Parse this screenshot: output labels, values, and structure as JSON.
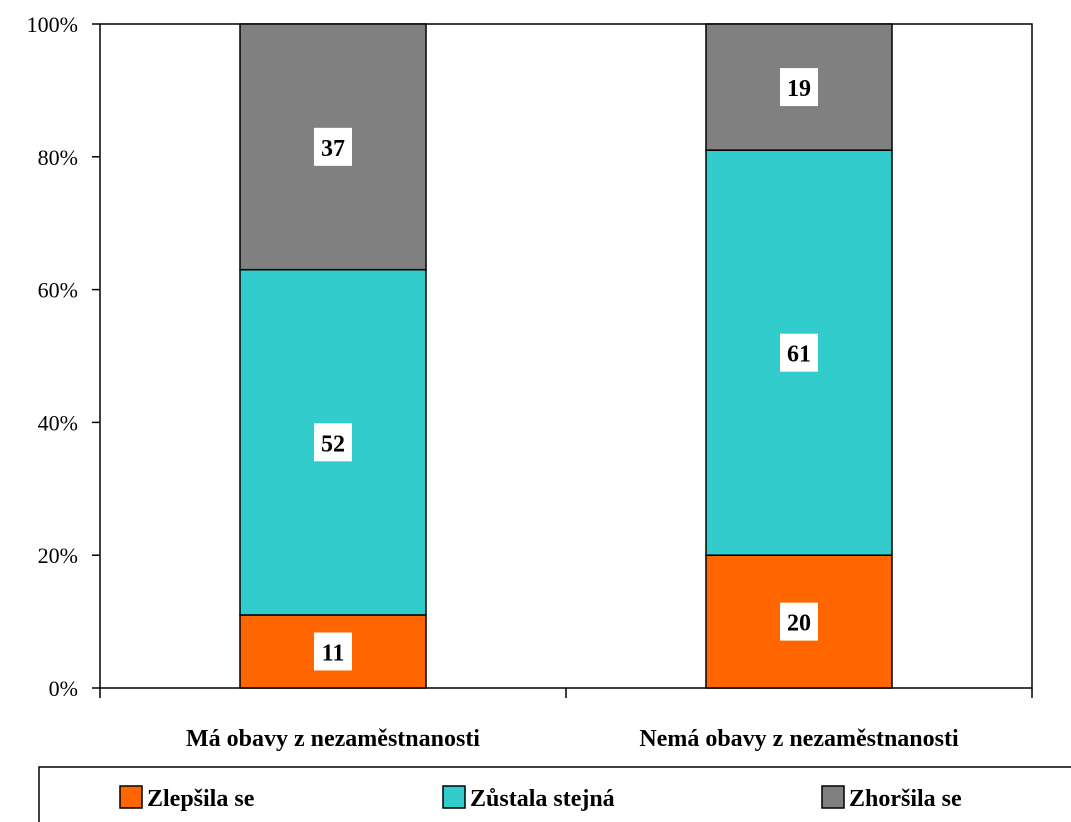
{
  "chart_data": {
    "type": "bar",
    "stacked": true,
    "percent": true,
    "categories": [
      "Má obavy z nezaměstnanosti",
      "Nemá obavy z nezaměstnanosti"
    ],
    "series": [
      {
        "name": "Zlepšila se",
        "values": [
          11,
          20
        ],
        "color": "#ff6600"
      },
      {
        "name": "Zůstala stejná",
        "values": [
          52,
          61
        ],
        "color": "#33cccc"
      },
      {
        "name": "Zhoršila se",
        "values": [
          37,
          19
        ],
        "color": "#808080"
      }
    ],
    "ylim": [
      0,
      100
    ],
    "yticks": [
      "0%",
      "20%",
      "40%",
      "60%",
      "80%",
      "100%"
    ],
    "grid": false,
    "legend": "bottom"
  }
}
